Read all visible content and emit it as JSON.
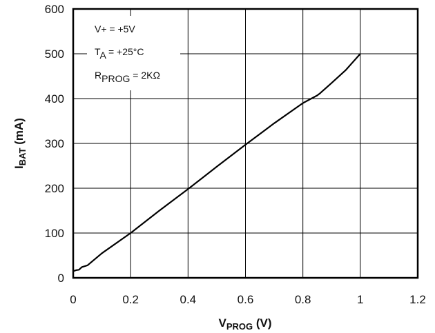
{
  "chart_data": {
    "type": "line",
    "xlim": [
      0,
      1.2
    ],
    "ylim": [
      0,
      600
    ],
    "x_ticks": [
      "0",
      "0.2",
      "0.4",
      "0.6",
      "0.8",
      "1",
      "1.2"
    ],
    "y_ticks": [
      "0",
      "100",
      "200",
      "300",
      "400",
      "500",
      "600"
    ],
    "grid": true,
    "xlabel": {
      "main": "V",
      "sub": "PROG",
      "suffix": " (V)"
    },
    "ylabel": {
      "main": "I",
      "sub": "BAT",
      "suffix": " (mA)"
    },
    "annotations": [
      {
        "main": "V+ = +5V",
        "sub": "",
        "suffix": ""
      },
      {
        "main": "T",
        "sub": "A",
        "suffix": " = +25°C"
      },
      {
        "main": "R",
        "sub": "PROG",
        "suffix": " = 2KΩ"
      }
    ],
    "series": [
      {
        "color": "#000000",
        "x": [
          0.0,
          0.01,
          0.02,
          0.03,
          0.05,
          0.1,
          0.2,
          0.3,
          0.4,
          0.5,
          0.6,
          0.7,
          0.8,
          0.85,
          0.86,
          0.9,
          0.95,
          1.0
        ],
        "y": [
          15,
          17,
          18,
          24,
          28,
          55,
          100,
          150,
          198,
          248,
          297,
          345,
          390,
          407,
          412,
          435,
          464,
          500
        ]
      }
    ]
  }
}
